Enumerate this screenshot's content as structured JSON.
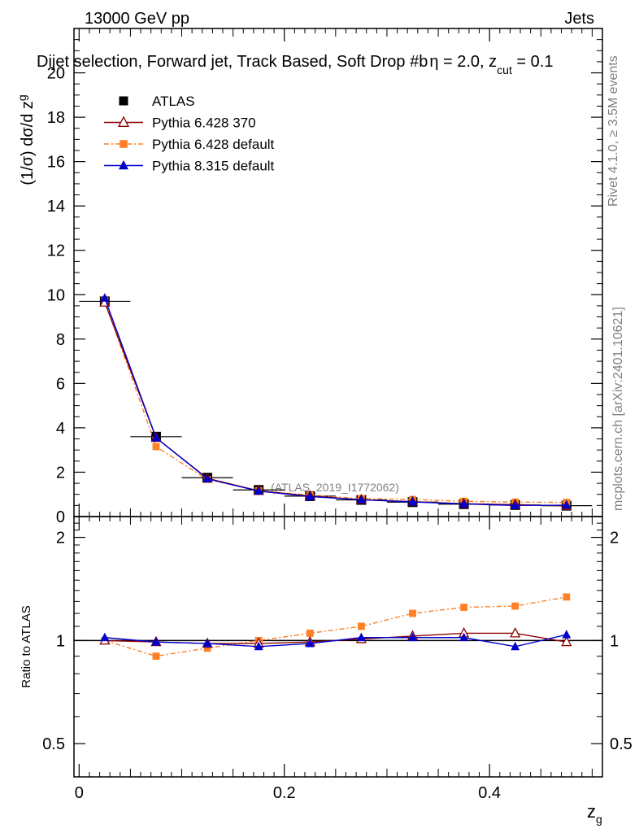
{
  "header": {
    "energy_label": "13000 GeV pp",
    "category_label": "Jets",
    "plot_title": "Dijet selection, Forward jet, Track Based, Soft Drop #b",
    "title_suffix_eta": "η = 2.0, z",
    "title_suffix_sub": "cut",
    "title_suffix_rest": " = 0.1"
  },
  "side_labels": {
    "rivet": "Rivet 4.1.0, ≥ 3.5M events",
    "mcplots": "mcplots.cern.ch [arXiv:2401.10621]"
  },
  "analysis_id": "(ATLAS_2019_I1772062)",
  "colors": {
    "atlas": "#000000",
    "py6_370": "#8b0000",
    "py6_default": "#ff7f24",
    "py8_default": "#0000cd"
  },
  "chart_data": [
    {
      "type": "line",
      "panel": "main",
      "ylabel": "(1/σ) dσ/d z",
      "ylabel_sub": "g",
      "xlim": [
        -0.005,
        0.51
      ],
      "ylim": [
        0,
        22
      ],
      "yticks": [
        0,
        2,
        4,
        6,
        8,
        10,
        12,
        14,
        16,
        18,
        20
      ],
      "ytick_labels": [
        "0",
        "2",
        "4",
        "6",
        "8",
        "10",
        "12",
        "14",
        "16",
        "18",
        "20"
      ],
      "x": [
        0.025,
        0.075,
        0.125,
        0.175,
        0.225,
        0.275,
        0.325,
        0.375,
        0.425,
        0.475
      ],
      "series": [
        {
          "name": "ATLAS",
          "marker": "square",
          "values": [
            9.7,
            3.6,
            1.75,
            1.2,
            0.92,
            0.75,
            0.65,
            0.56,
            0.52,
            0.49
          ]
        },
        {
          "name": "Pythia 6.428 370",
          "marker": "open-triangle",
          "values": [
            9.65,
            3.55,
            1.72,
            1.16,
            0.93,
            0.76,
            0.67,
            0.58,
            0.54,
            0.48
          ]
        },
        {
          "name": "Pythia 6.428 default",
          "marker": "square-small",
          "values": [
            9.72,
            3.15,
            1.67,
            1.17,
            0.96,
            0.81,
            0.77,
            0.69,
            0.65,
            0.64
          ]
        },
        {
          "name": "Pythia 8.315 default",
          "marker": "filled-triangle",
          "values": [
            9.85,
            3.55,
            1.7,
            1.15,
            0.9,
            0.76,
            0.66,
            0.57,
            0.5,
            0.51
          ]
        }
      ]
    },
    {
      "type": "line",
      "panel": "ratio",
      "ylabel": "Ratio to ATLAS",
      "xlabel": "z",
      "xlabel_sub": "g",
      "xlim": [
        -0.005,
        0.51
      ],
      "ylim": [
        0.4,
        2.3
      ],
      "yticks": [
        0.5,
        1,
        2
      ],
      "ytick_labels": [
        "0.5",
        "1",
        "2"
      ],
      "xticks": [
        0,
        0.2,
        0.4
      ],
      "xtick_labels": [
        "0",
        "0.2",
        "0.4"
      ],
      "x": [
        0.025,
        0.075,
        0.125,
        0.175,
        0.225,
        0.275,
        0.325,
        0.375,
        0.425,
        0.475
      ],
      "series": [
        {
          "name": "Pythia 6.428 370",
          "values": [
            1.0,
            0.99,
            0.98,
            0.98,
            0.99,
            1.01,
            1.03,
            1.05,
            1.05,
            0.99
          ]
        },
        {
          "name": "Pythia 6.428 default",
          "values": [
            1.0,
            0.9,
            0.95,
            1.0,
            1.05,
            1.1,
            1.2,
            1.25,
            1.26,
            1.34
          ]
        },
        {
          "name": "Pythia 8.315 default",
          "values": [
            1.02,
            0.99,
            0.98,
            0.96,
            0.98,
            1.02,
            1.02,
            1.02,
            0.96,
            1.04
          ]
        }
      ]
    }
  ]
}
